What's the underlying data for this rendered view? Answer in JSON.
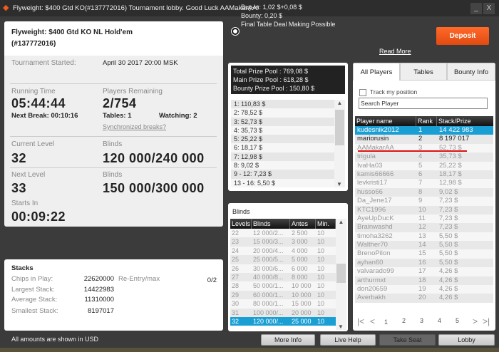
{
  "window": {
    "title": "Flyweight: $400 Gtd KO(#137772016) Tournament lobby. Good Luck AAMakarAA!",
    "minimize": "_",
    "close": "X",
    "logo_icon": "diamond-icon"
  },
  "header": {
    "buyin": "Buy-in: 1,02 $+0,08 $",
    "bounty": "Bounty: 0,20 $",
    "deal": "Final Table Deal Making Possible",
    "read_more": "Read More",
    "deposit": "Deposit"
  },
  "tournament": {
    "name": "Flyweight: $400 Gtd KO NL Hold'em",
    "id": "(#137772016)",
    "started_label": "Tournament Started:",
    "started_value": "April 30 2017  20:00 MSK",
    "running_label": "Running Time",
    "running_value": "05:44:44",
    "next_break": "Next Break: 00:10:16",
    "players_label": "Players Remaining",
    "players_value": "2/754",
    "tables": "Tables: 1",
    "watching": "Watching: 2",
    "sync_breaks": "Synchronized breaks?",
    "current_level_label": "Current Level",
    "current_level": "32",
    "blinds_label": "Blinds",
    "current_blinds": "120 000/240 000",
    "next_level_label": "Next Level",
    "next_level": "33",
    "next_blinds": "150 000/300 000",
    "starts_in_label": "Starts In",
    "starts_in": "00:09:22"
  },
  "stacks": {
    "title": "Stacks",
    "chips_label": "Chips in Play:",
    "chips": "22620000",
    "reentry_label": "Re-Entry/max",
    "reentry": "0/2",
    "largest_label": "Largest Stack:",
    "largest": "14422983",
    "average_label": "Average Stack:",
    "average": "11310000",
    "smallest_label": "Smallest Stack:",
    "smallest": "8197017"
  },
  "footer_note": "All amounts are shown in USD",
  "prize": {
    "total": "Total Prize Pool : 769,08 $",
    "main": "Main Prize Pool : 618,28 $",
    "bounty": "Bounty Prize Pool : 150,80 $",
    "payouts": [
      "1: 110,83 $",
      "2: 78,52 $",
      "3: 52,73 $",
      "4: 35,73 $",
      "5: 25,22 $",
      "6: 18,17 $",
      "7: 12,98 $",
      "8: 9,02 $",
      "9 - 12: 7,23 $",
      "13 - 16: 5,50 $"
    ]
  },
  "blinds": {
    "title": "Blinds",
    "columns": [
      "Levels",
      "Blinds",
      "Antes",
      "Min."
    ],
    "rows": [
      [
        "22",
        "12 000/2...",
        "2 500",
        "10"
      ],
      [
        "23",
        "15 000/3...",
        "3 000",
        "10"
      ],
      [
        "24",
        "20 000/4...",
        "4 000",
        "10"
      ],
      [
        "25",
        "25 000/5...",
        "5 000",
        "10"
      ],
      [
        "26",
        "30 000/6...",
        "6 000",
        "10"
      ],
      [
        "27",
        "40 000/8...",
        "8 000",
        "10"
      ],
      [
        "28",
        "50 000/1...",
        "10 000",
        "10"
      ],
      [
        "29",
        "60 000/1...",
        "10 000",
        "10"
      ],
      [
        "30",
        "80 000/1...",
        "15 000",
        "10"
      ],
      [
        "31",
        "100 000/...",
        "20 000",
        "10"
      ],
      [
        "32",
        "120 000/...",
        "25 000",
        "10"
      ]
    ],
    "selected": "32"
  },
  "players": {
    "tabs": [
      "All Players",
      "Tables",
      "Bounty Info"
    ],
    "track_label": "Track my position",
    "search_value": "Search Player",
    "columns": [
      "Player name",
      "Rank",
      "Stack/Prize"
    ],
    "rows": [
      [
        "kudesnik2012",
        "1",
        "14 422 983"
      ],
      [
        "mariorusin",
        "2",
        "8 197 017"
      ],
      [
        "AAMakarAA",
        "3",
        "52,73 $"
      ],
      [
        "trigula",
        "4",
        "35,73 $"
      ],
      [
        "IvaHa03",
        "5",
        "25,22 $"
      ],
      [
        "kamis66666",
        "6",
        "18,17 $"
      ],
      [
        "levkristi17",
        "7",
        "12,98 $"
      ],
      [
        "husso66",
        "8",
        "9,02 $"
      ],
      [
        "Da_Jene17",
        "9",
        "7,23 $"
      ],
      [
        "KTC1996",
        "10",
        "7,23 $"
      ],
      [
        "AyeUpDucK",
        "11",
        "7,23 $"
      ],
      [
        "Brainwashd",
        "12",
        "7,23 $"
      ],
      [
        "timoha3262",
        "13",
        "5,50 $"
      ],
      [
        "Walther70",
        "14",
        "5,50 $"
      ],
      [
        "BrenoPilon",
        "15",
        "5,50 $"
      ],
      [
        "ayhan60",
        "16",
        "5,50 $"
      ],
      [
        "valvarado99",
        "17",
        "4,26 $"
      ],
      [
        "arthurmxt",
        "18",
        "4,26 $"
      ],
      [
        "don20659",
        "19",
        "4,26 $"
      ],
      [
        "Averbakh",
        "20",
        "4,26 $"
      ]
    ],
    "pages": [
      "1",
      "2",
      "3",
      "4",
      "5"
    ],
    "current_page": "1",
    "first": "|<",
    "prev": "<",
    "next": ">",
    "last": ">|"
  },
  "buttons": {
    "more_info": "More Info",
    "live_help": "Live Help",
    "take_seat": "Take Seat",
    "lobby": "Lobby"
  },
  "colors": {
    "accent": "#1a9fd4",
    "deposit": "#f05a1a",
    "highlight_line": "#e01010"
  }
}
